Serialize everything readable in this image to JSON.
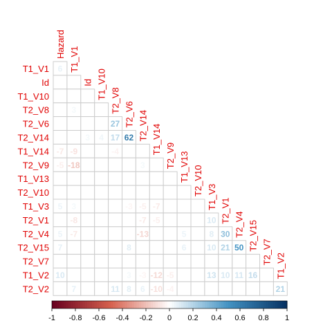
{
  "chart_data": {
    "type": "heatmap",
    "title": "",
    "variables": [
      "Hazard",
      "T1_V1",
      "Id",
      "T1_V10",
      "T2_V8",
      "T2_V6",
      "T2_V14",
      "T1_V14",
      "T2_V9",
      "T1_V13",
      "T2_V10",
      "T1_V3",
      "T2_V1",
      "T2_V4",
      "T2_V15",
      "T2_V7",
      "T1_V2",
      "T2_V2"
    ],
    "row_labels": [
      "T1_V1",
      "Id",
      "T1_V10",
      "T2_V8",
      "T2_V6",
      "T2_V14",
      "T1_V14",
      "T2_V9",
      "T1_V13",
      "T2_V10",
      "T1_V3",
      "T2_V1",
      "T2_V4",
      "T2_V15",
      "T2_V7",
      "T1_V2",
      "T2_V2"
    ],
    "col_labels": [
      "Hazard",
      "T1_V1",
      "Id",
      "T1_V10",
      "T2_V8",
      "T2_V6",
      "T2_V14",
      "T1_V14",
      "T2_V9",
      "T1_V13",
      "T2_V10",
      "T1_V3",
      "T2_V1",
      "T2_V4",
      "T2_V15",
      "T2_V7",
      "T1_V2"
    ],
    "lower_triangle": true,
    "values_scaled_by": 100,
    "cells": [
      {
        "row": "T1_V1",
        "col": "Hazard",
        "value": 6
      },
      {
        "row": "T2_V8",
        "col": "T1_V1",
        "value": 3
      },
      {
        "row": "T2_V6",
        "col": "T2_V8",
        "value": 27
      },
      {
        "row": "T2_V14",
        "col": "T2_V8",
        "value": 17
      },
      {
        "row": "T2_V14",
        "col": "T2_V6",
        "value": 62
      },
      {
        "row": "T2_V14",
        "col": "Id",
        "value": 3
      },
      {
        "row": "T2_V14",
        "col": "T1_V10",
        "value": 4
      },
      {
        "row": "T1_V14",
        "col": "Hazard",
        "value": -7
      },
      {
        "row": "T1_V14",
        "col": "T1_V1",
        "value": -9
      },
      {
        "row": "T1_V14",
        "col": "T2_V8",
        "value": -4
      },
      {
        "row": "T2_V9",
        "col": "Hazard",
        "value": -5
      },
      {
        "row": "T2_V9",
        "col": "T1_V1",
        "value": -18
      },
      {
        "row": "T2_V9",
        "col": "T2_V14",
        "value": 3
      },
      {
        "row": "T1_V3",
        "col": "Hazard",
        "value": 5
      },
      {
        "row": "T1_V3",
        "col": "T1_V1",
        "value": 3
      },
      {
        "row": "T1_V3",
        "col": "T2_V6",
        "value": -3
      },
      {
        "row": "T1_V3",
        "col": "T2_V14",
        "value": -5
      },
      {
        "row": "T1_V3",
        "col": "T1_V14",
        "value": -7
      },
      {
        "row": "T2_V1",
        "col": "T1_V1",
        "value": -8
      },
      {
        "row": "T2_V1",
        "col": "T2_V14",
        "value": -7
      },
      {
        "row": "T2_V1",
        "col": "T1_V14",
        "value": -5
      },
      {
        "row": "T2_V1",
        "col": "T1_V3",
        "value": 10
      },
      {
        "row": "T2_V4",
        "col": "Hazard",
        "value": 5
      },
      {
        "row": "T2_V4",
        "col": "T1_V1",
        "value": -7
      },
      {
        "row": "T2_V4",
        "col": "T2_V14",
        "value": -13
      },
      {
        "row": "T2_V4",
        "col": "T1_V13",
        "value": 5
      },
      {
        "row": "T2_V4",
        "col": "T1_V3",
        "value": 8
      },
      {
        "row": "T2_V4",
        "col": "T2_V1",
        "value": 30
      },
      {
        "row": "T2_V15",
        "col": "Hazard",
        "value": 7
      },
      {
        "row": "T2_V15",
        "col": "T2_V6",
        "value": 8
      },
      {
        "row": "T2_V15",
        "col": "T1_V13",
        "value": 6
      },
      {
        "row": "T2_V15",
        "col": "T1_V3",
        "value": 10
      },
      {
        "row": "T2_V15",
        "col": "T2_V1",
        "value": 21
      },
      {
        "row": "T2_V15",
        "col": "T2_V4",
        "value": 50
      },
      {
        "row": "T1_V2",
        "col": "Hazard",
        "value": 10
      },
      {
        "row": "T1_V2",
        "col": "T2_V6",
        "value": 3
      },
      {
        "row": "T1_V2",
        "col": "T2_V14",
        "value": -3
      },
      {
        "row": "T1_V2",
        "col": "T1_V14",
        "value": -12
      },
      {
        "row": "T1_V2",
        "col": "T2_V9",
        "value": -5
      },
      {
        "row": "T1_V2",
        "col": "T1_V3",
        "value": 13
      },
      {
        "row": "T1_V2",
        "col": "T2_V1",
        "value": 10
      },
      {
        "row": "T1_V2",
        "col": "T2_V4",
        "value": 11
      },
      {
        "row": "T1_V2",
        "col": "T2_V15",
        "value": 16
      },
      {
        "row": "T2_V2",
        "col": "T1_V1",
        "value": 7
      },
      {
        "row": "T2_V2",
        "col": "T2_V8",
        "value": 11
      },
      {
        "row": "T2_V2",
        "col": "T2_V6",
        "value": 8
      },
      {
        "row": "T2_V2",
        "col": "T2_V14",
        "value": 6
      },
      {
        "row": "T2_V2",
        "col": "T1_V14",
        "value": -10
      },
      {
        "row": "T2_V2",
        "col": "T2_V9",
        "value": -4
      },
      {
        "row": "T2_V2",
        "col": "T1_V2",
        "value": 21
      }
    ],
    "colorbar": {
      "range": [
        -1,
        1
      ],
      "ticks": [
        "-1",
        "-0.8",
        "-0.6",
        "-0.4",
        "-0.2",
        "0",
        "0.2",
        "0.4",
        "0.6",
        "0.8",
        "1"
      ],
      "placement": "bottom"
    },
    "colors": {
      "negative_max": "#67001f",
      "negative_mid": "#d6604d",
      "zero": "#ffffff",
      "positive_mid": "#4393c3",
      "positive_max": "#053061",
      "label_color": "#e00000",
      "grid_color": "#cccccc"
    },
    "grid": true
  }
}
